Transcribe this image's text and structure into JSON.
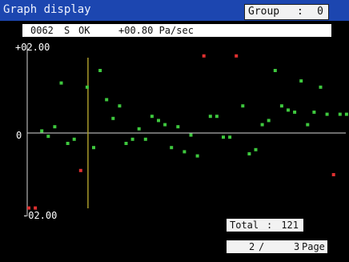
{
  "header": {
    "title": "Graph display",
    "group_label": "Group",
    "group_separator": ":",
    "group_value": "0"
  },
  "status": {
    "code": "0062",
    "flag": "S",
    "state": "OK",
    "rate": "+00.80 Pa/sec"
  },
  "axis": {
    "y_max_label": "+02.00",
    "y_zero_label": "0",
    "y_min_label": "-02.00"
  },
  "footer": {
    "total_label": "Total",
    "total_separator": ":",
    "total_value": "121",
    "page_current": "2",
    "page_separator": "/",
    "page_total": "3",
    "page_word": "Page"
  },
  "colors": {
    "title_bar": "#1c46b0",
    "normal_point": "#3ec83e",
    "alarm_point": "#e03030",
    "cursor_line": "#a89a2a",
    "axis_line": "#d8d8d8"
  },
  "chart_data": {
    "type": "scatter",
    "ylim": [
      -2.0,
      2.0
    ],
    "cursor_index": 10,
    "series": [
      {
        "x": [
          1,
          2,
          3,
          4,
          5,
          6,
          7,
          8,
          9,
          10,
          11,
          12,
          13,
          14,
          15,
          16,
          17,
          18,
          19,
          20,
          21,
          22,
          23,
          24,
          25,
          26,
          27,
          28,
          29,
          30,
          31,
          32,
          33,
          34,
          35,
          36,
          37,
          38,
          39,
          40,
          41,
          42,
          43,
          44,
          45,
          46,
          47,
          48,
          49,
          50
        ],
        "values": [
          -1.8,
          -1.8,
          0.05,
          -0.08,
          0.15,
          1.2,
          -0.25,
          -0.15,
          -0.9,
          1.1,
          -0.35,
          1.5,
          0.8,
          0.35,
          0.65,
          -0.25,
          -0.15,
          0.1,
          -0.15,
          0.4,
          0.3,
          0.2,
          -0.35,
          0.15,
          -0.45,
          -0.05,
          -0.55,
          1.85,
          0.4,
          0.4,
          -0.1,
          -0.1,
          1.85,
          0.65,
          -0.5,
          -0.4,
          0.2,
          0.3,
          1.5,
          0.65,
          0.55,
          0.5,
          1.25,
          0.2,
          0.5,
          1.1,
          0.45,
          -1.0,
          0.45,
          0.45
        ],
        "alarm": [
          true,
          true,
          false,
          false,
          false,
          false,
          false,
          false,
          true,
          false,
          false,
          false,
          false,
          false,
          false,
          false,
          false,
          false,
          false,
          false,
          false,
          false,
          false,
          false,
          false,
          false,
          false,
          true,
          false,
          false,
          false,
          false,
          true,
          false,
          false,
          false,
          false,
          false,
          false,
          false,
          false,
          false,
          false,
          false,
          false,
          false,
          false,
          true,
          false,
          false
        ]
      }
    ]
  }
}
